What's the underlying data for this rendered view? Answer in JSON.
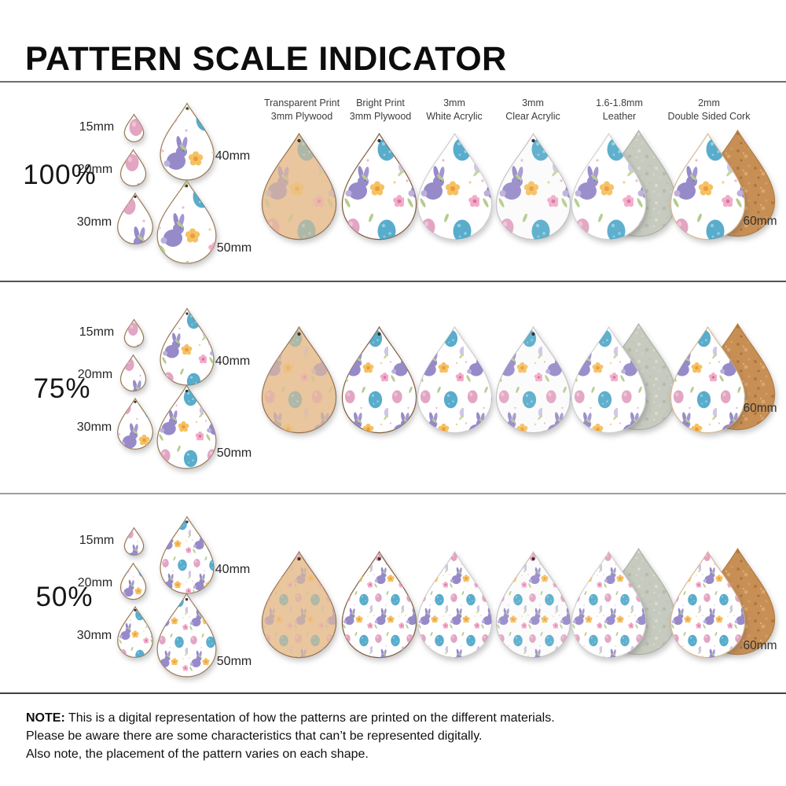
{
  "title": "PATTERN SCALE INDICATOR",
  "rows": [
    {
      "key": "100",
      "scale_label": "100%"
    },
    {
      "key": "75",
      "scale_label": "75%"
    },
    {
      "key": "50",
      "scale_label": "50%"
    }
  ],
  "size_labels": [
    "15mm",
    "20mm",
    "30mm",
    "40mm",
    "50mm"
  ],
  "materials": [
    {
      "key": "transparent-print-plywood",
      "label_line1": "Transparent Print",
      "label_line2": "3mm Plywood"
    },
    {
      "key": "bright-print-plywood",
      "label_line1": "Bright Print",
      "label_line2": "3mm Plywood"
    },
    {
      "key": "white-acrylic",
      "label_line1": "3mm",
      "label_line2": "White Acrylic"
    },
    {
      "key": "clear-acrylic",
      "label_line1": "3mm",
      "label_line2": "Clear Acrylic"
    },
    {
      "key": "leather",
      "label_line1": "1.6-1.8mm",
      "label_line2": "Leather"
    },
    {
      "key": "double-sided-cork",
      "label_line1": "2mm",
      "label_line2": "Double Sided Cork"
    }
  ],
  "large_size_label": "60mm",
  "note": {
    "prefix": "NOTE:",
    "line1": "This is a digital representation of how the patterns are printed on the different materials.",
    "line2": "Please be aware there are some characteristics that can’t be represented digitally.",
    "line3": "Also note, the placement of the pattern varies on each shape."
  },
  "colors": {
    "bunny_purple": "#978ac9",
    "egg_teal": "#47a3c6",
    "egg_pink": "#df9cbc",
    "flower_yellow": "#f5c163",
    "flower_pink": "#f2abc8",
    "leaf_green": "#b4cc8e",
    "wood_tan": "#eccda8",
    "suede_gray": "#c6cabf",
    "cork_tan": "#c88f55",
    "text_black": "#111111"
  }
}
